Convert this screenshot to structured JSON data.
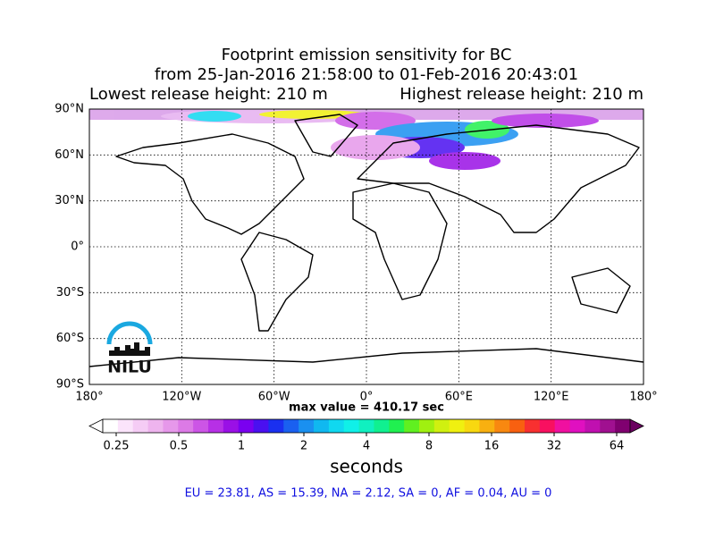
{
  "title": [
    "Footprint emission sensitivity for BC",
    "from 25-Jan-2016 21:58:00 to 01-Feb-2016 20:43:01"
  ],
  "release_heights": [
    "Lowest release height: 210 m",
    "Highest release height: 210 m"
  ],
  "map": {
    "lat_ticks": [
      "90°N",
      "60°N",
      "30°N",
      "0°",
      "30°S",
      "60°S",
      "90°S"
    ],
    "lon_ticks": [
      "180°",
      "120°W",
      "60°W",
      "0°",
      "60°E",
      "120°E",
      "180°"
    ]
  },
  "logo": "NILU",
  "max_value": "max value = 410.17 sec",
  "colorbar": {
    "ticks": [
      "0.25",
      "0.5",
      "1",
      "2",
      "4",
      "8",
      "16",
      "32",
      "64"
    ],
    "label": "seconds",
    "colors": [
      "#ffffff",
      "#fbe4fb",
      "#f5ccf5",
      "#eeb4ee",
      "#e698ea",
      "#dc7ae6",
      "#cc55e6",
      "#b730e6",
      "#9a10e6",
      "#7a00f0",
      "#4a10f0",
      "#1a30f0",
      "#1a60f0",
      "#1a90f0",
      "#10b8f0",
      "#10d8f0",
      "#10f0e8",
      "#10f0c0",
      "#10f090",
      "#20f050",
      "#60f020",
      "#a0f010",
      "#d0f010",
      "#f0f010",
      "#f8d810",
      "#f8b010",
      "#f88810",
      "#f86010",
      "#f83030",
      "#f81060",
      "#f010a0",
      "#e010c0",
      "#c010b0",
      "#a01090",
      "#800070"
    ],
    "under_color": "#ffffff",
    "over_color": "#6a0060"
  },
  "regions": "EU = 23.81,  AS = 15.39,  NA = 2.12,  SA = 0,  AF = 0.04,  AU = 0"
}
